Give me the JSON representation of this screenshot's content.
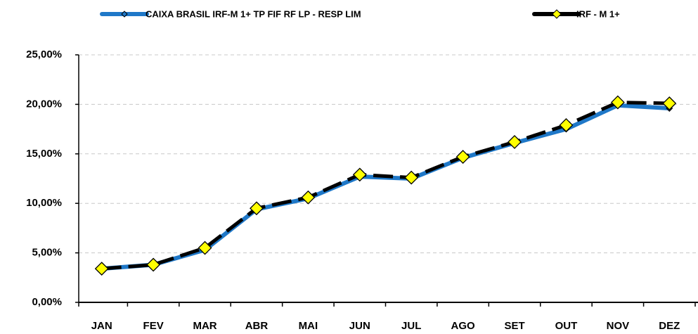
{
  "chart_data": {
    "type": "line",
    "categories": [
      "JAN",
      "FEV",
      "MAR",
      "ABR",
      "MAI",
      "JUN",
      "JUL",
      "AGO",
      "SET",
      "OUT",
      "NOV",
      "DEZ"
    ],
    "series": [
      {
        "name": "CAIXA BRASIL IRF-M 1+ TP FIF RF LP - RESP LIM",
        "color": "#1f78c8",
        "values": [
          3.4,
          3.8,
          5.3,
          9.4,
          10.5,
          12.7,
          12.5,
          14.6,
          16.1,
          17.5,
          19.9,
          19.6
        ]
      },
      {
        "name": "IRF - M 1+",
        "color": "#000000",
        "marker_color": "#ffff00",
        "values": [
          3.4,
          3.8,
          5.5,
          9.5,
          10.6,
          12.9,
          12.6,
          14.7,
          16.2,
          17.9,
          20.2,
          20.1
        ]
      }
    ],
    "ylim": [
      0,
      25
    ],
    "yticks": [
      {
        "value": 0,
        "label": "0,00%"
      },
      {
        "value": 5,
        "label": "5,00%"
      },
      {
        "value": 10,
        "label": "10,00%"
      },
      {
        "value": 15,
        "label": "15,00%"
      },
      {
        "value": 20,
        "label": "20,00%"
      },
      {
        "value": 25,
        "label": "25,00%"
      }
    ],
    "grid": true,
    "legend": "top"
  }
}
